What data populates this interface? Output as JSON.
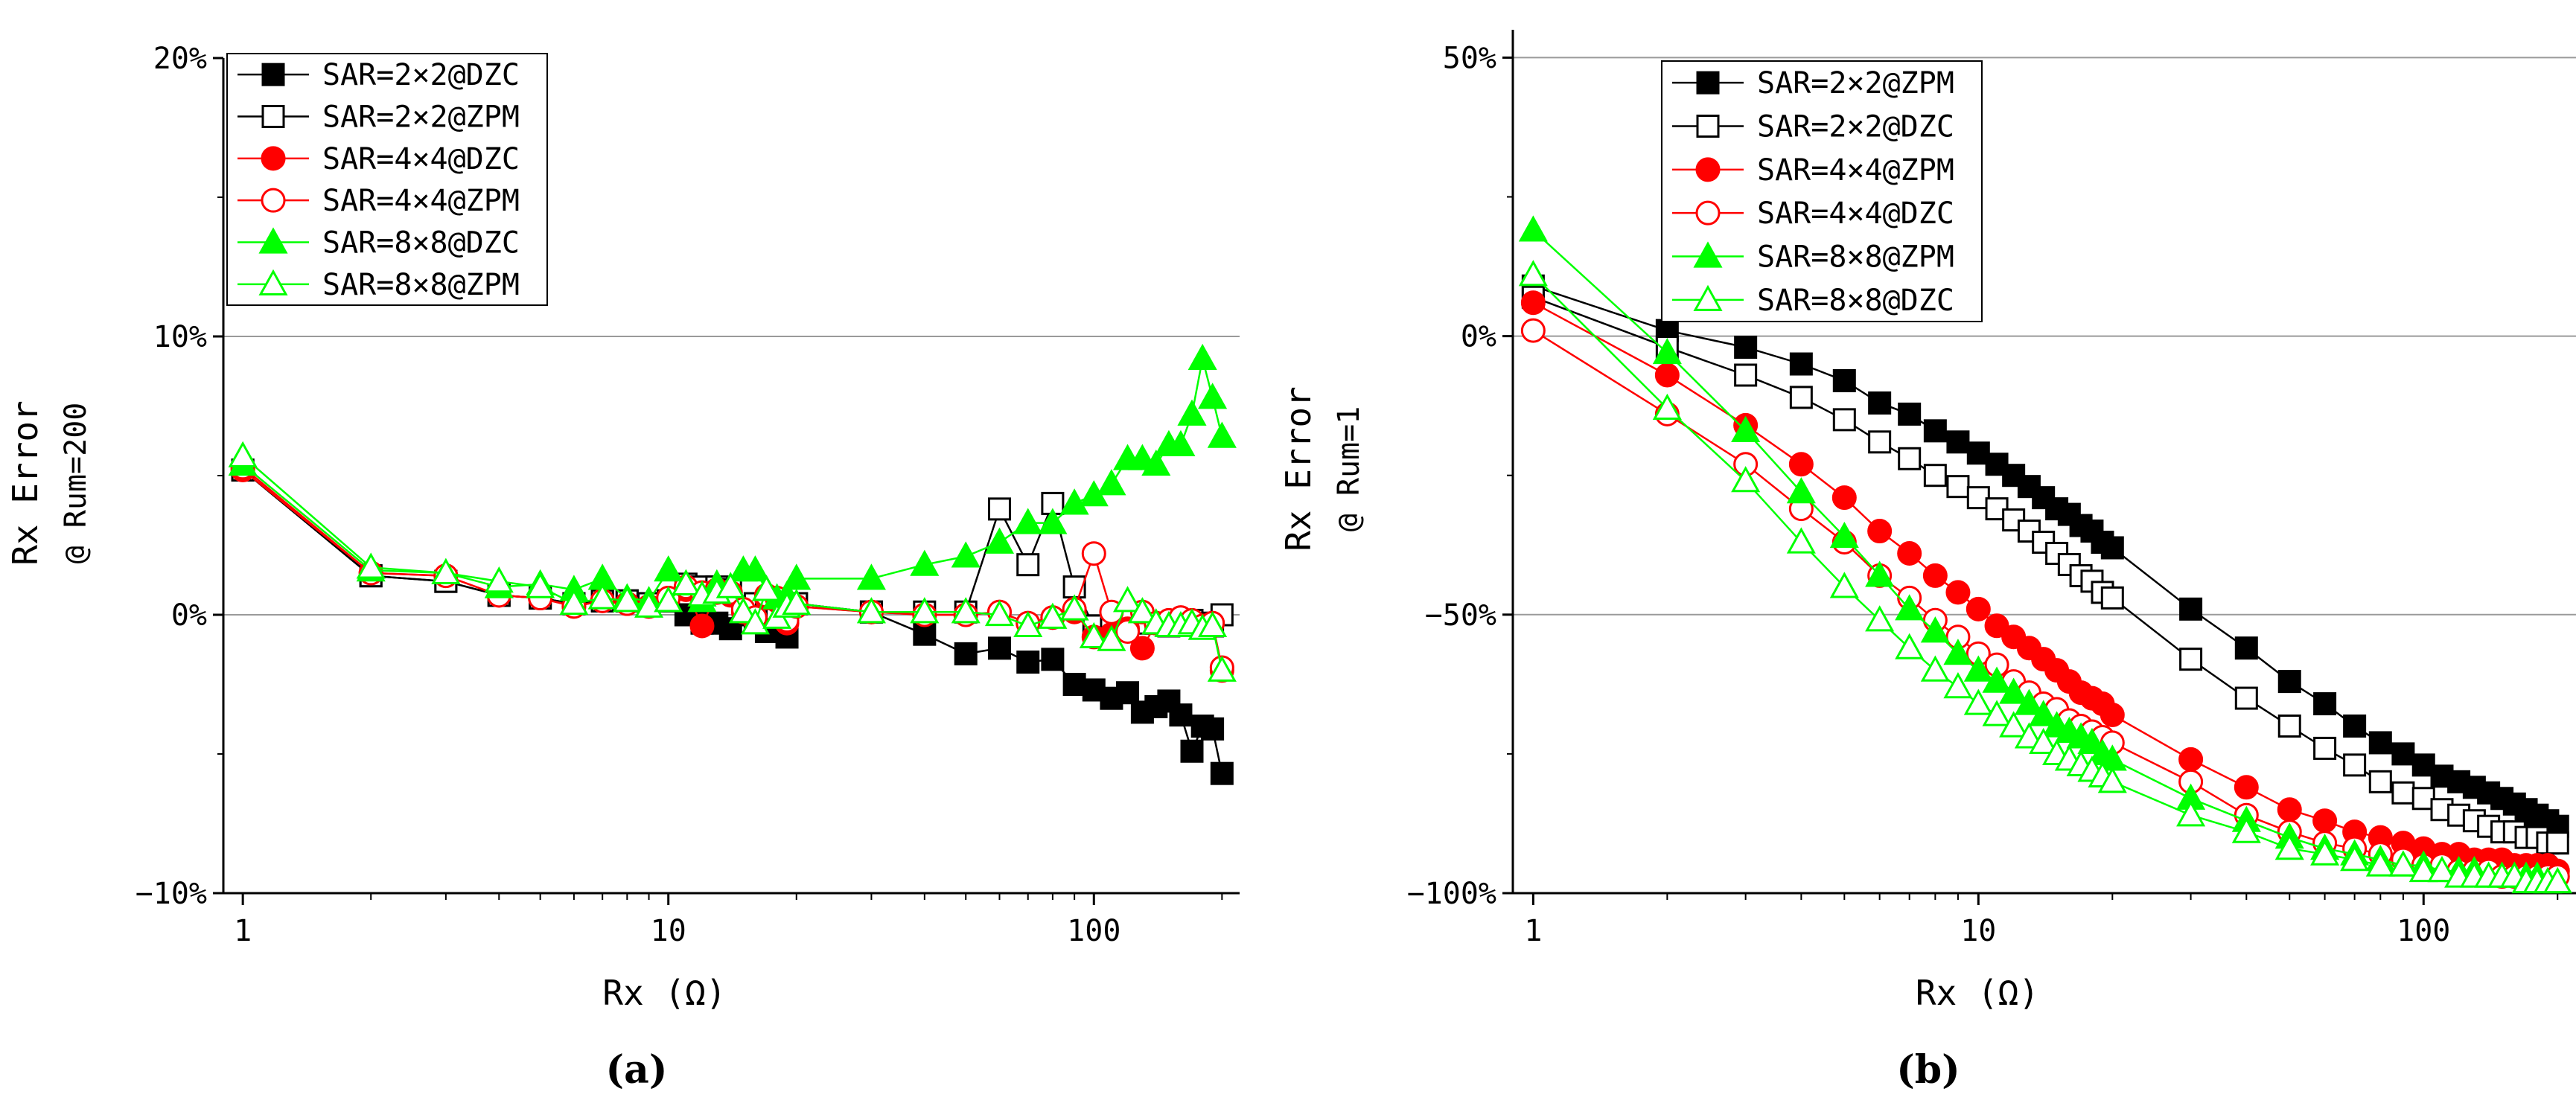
{
  "chart_data": [
    {
      "type": "line",
      "panel_label": "(a)",
      "panel_letter": "a",
      "xscale": "log",
      "xlim": [
        0.9,
        220
      ],
      "ylim": [
        -10,
        20
      ],
      "xticks": [
        1,
        10,
        100
      ],
      "xtick_labels": [
        "1",
        "10",
        "100"
      ],
      "yticks": [
        -10,
        0,
        10,
        20
      ],
      "ytick_labels": [
        "−10%",
        "0%",
        "10%",
        "20%"
      ],
      "grid_y": [
        10,
        0
      ],
      "xlabel": "Rx (Ω)",
      "ylabel_line1": "Rx Error",
      "ylabel_line2": "@ Rum=200",
      "legend_position": "top-left",
      "series": [
        {
          "name": "SAR=2×2@DZC",
          "label": "SAR=2×2@DZC",
          "color": "#000000",
          "marker": "square",
          "filled": true,
          "x": [
            1,
            2,
            3,
            4,
            5,
            6,
            7,
            8,
            9,
            10,
            11,
            12,
            13,
            14,
            15,
            16,
            17,
            18,
            19,
            20,
            30,
            40,
            50,
            60,
            70,
            80,
            90,
            100,
            110,
            120,
            130,
            140,
            150,
            160,
            170,
            180,
            190,
            200
          ],
          "y": [
            5.2,
            1.4,
            1.2,
            0.7,
            0.6,
            0.4,
            0.5,
            0.5,
            0.4,
            0.5,
            0.0,
            -0.3,
            -0.3,
            -0.5,
            0.0,
            -0.2,
            -0.6,
            -0.5,
            -0.8,
            0.4,
            0.1,
            -0.7,
            -1.4,
            -1.2,
            -1.7,
            -1.6,
            -2.5,
            -2.7,
            -3.0,
            -2.8,
            -3.5,
            -3.3,
            -3.1,
            -3.6,
            -4.9,
            -4.0,
            -4.1,
            -5.7
          ]
        },
        {
          "name": "SAR=2×2@ZPM",
          "label": "SAR=2×2@ZPM",
          "color": "#000000",
          "marker": "square",
          "filled": false,
          "x": [
            1,
            2,
            3,
            4,
            5,
            6,
            7,
            8,
            9,
            10,
            11,
            12,
            13,
            14,
            15,
            16,
            17,
            18,
            19,
            20,
            30,
            40,
            50,
            60,
            70,
            80,
            90,
            100,
            110,
            120,
            130,
            140,
            150,
            160,
            170,
            180,
            190,
            200
          ],
          "y": [
            5.2,
            1.4,
            1.2,
            0.7,
            0.6,
            0.4,
            0.5,
            0.5,
            0.4,
            0.5,
            1.1,
            1.0,
            1.0,
            0.9,
            0.2,
            0.4,
            0.1,
            0.2,
            0.1,
            0.4,
            0.1,
            0.1,
            0.1,
            3.8,
            1.8,
            4.0,
            1.0,
            -0.4,
            -0.5,
            -0.2,
            -0.3,
            -0.3,
            -0.4,
            -0.3,
            -0.2,
            -0.3,
            -0.4,
            0.0
          ]
        },
        {
          "name": "SAR=4×4@DZC",
          "label": "SAR=4×4@DZC",
          "color": "#ff0000",
          "marker": "circle",
          "filled": true,
          "x": [
            1,
            2,
            3,
            4,
            5,
            6,
            7,
            8,
            9,
            10,
            11,
            12,
            13,
            14,
            15,
            16,
            17,
            18,
            19,
            20,
            30,
            40,
            50,
            60,
            70,
            80,
            90,
            100,
            110,
            120,
            130,
            140,
            150,
            160,
            170,
            180,
            190,
            200
          ],
          "y": [
            5.2,
            1.5,
            1.4,
            0.7,
            0.6,
            0.3,
            0.5,
            0.4,
            0.3,
            0.6,
            0.9,
            -0.4,
            0.8,
            0.7,
            0.1,
            -0.2,
            0.6,
            0.5,
            -0.3,
            0.3,
            0.1,
            0.0,
            0.0,
            0.1,
            -0.3,
            -0.1,
            0.1,
            -0.8,
            -0.7,
            -0.5,
            -1.2,
            -0.3,
            -0.2,
            -0.1,
            -0.2,
            -0.4,
            -0.3,
            -2.0
          ]
        },
        {
          "name": "SAR=4×4@ZPM",
          "label": "SAR=4×4@ZPM",
          "color": "#ff0000",
          "marker": "circle",
          "filled": false,
          "x": [
            1,
            2,
            3,
            4,
            5,
            6,
            7,
            8,
            9,
            10,
            11,
            12,
            13,
            14,
            15,
            16,
            17,
            18,
            19,
            20,
            30,
            40,
            50,
            60,
            70,
            80,
            90,
            100,
            110,
            120,
            130,
            140,
            150,
            160,
            170,
            180,
            190,
            200
          ],
          "y": [
            5.3,
            1.5,
            1.4,
            0.7,
            0.6,
            0.3,
            0.5,
            0.4,
            0.3,
            0.6,
            1.0,
            0.8,
            0.9,
            0.8,
            0.2,
            -0.1,
            0.7,
            0.6,
            -0.2,
            0.3,
            0.1,
            0.0,
            0.0,
            0.1,
            -0.3,
            -0.1,
            0.2,
            2.2,
            0.1,
            -0.6,
            0.1,
            -0.3,
            -0.2,
            -0.1,
            -0.2,
            -0.4,
            -0.3,
            -1.9
          ]
        },
        {
          "name": "SAR=8×8@DZC",
          "label": "SAR=8×8@DZC",
          "color": "#00ff00",
          "marker": "triangle",
          "filled": true,
          "x": [
            1,
            2,
            3,
            4,
            5,
            6,
            7,
            8,
            9,
            10,
            11,
            12,
            13,
            14,
            15,
            16,
            17,
            18,
            19,
            20,
            30,
            40,
            50,
            60,
            70,
            80,
            90,
            100,
            110,
            120,
            130,
            140,
            150,
            160,
            170,
            180,
            190,
            200
          ],
          "y": [
            5.4,
            1.6,
            1.5,
            1.0,
            1.1,
            0.9,
            1.3,
            0.6,
            0.5,
            1.6,
            1.1,
            0.5,
            1.1,
            1.0,
            1.6,
            1.6,
            0.9,
            0.6,
            0.7,
            1.3,
            1.3,
            1.8,
            2.1,
            2.6,
            3.3,
            3.3,
            4.0,
            4.3,
            4.7,
            5.6,
            5.6,
            5.4,
            6.1,
            6.1,
            7.2,
            9.2,
            7.8,
            6.4
          ]
        },
        {
          "name": "SAR=8×8@ZPM",
          "label": "SAR=8×8@ZPM",
          "color": "#00ff00",
          "marker": "triangle",
          "filled": false,
          "x": [
            1,
            2,
            3,
            4,
            5,
            6,
            7,
            8,
            9,
            10,
            11,
            12,
            13,
            14,
            15,
            16,
            17,
            18,
            19,
            20,
            30,
            40,
            50,
            60,
            70,
            80,
            90,
            100,
            110,
            120,
            130,
            140,
            150,
            160,
            170,
            180,
            190,
            200
          ],
          "y": [
            5.7,
            1.7,
            1.5,
            1.2,
            1.0,
            0.4,
            0.6,
            0.5,
            0.3,
            0.5,
            1.1,
            0.7,
            0.8,
            1.0,
            0.1,
            -0.3,
            0.9,
            -0.1,
            0.3,
            0.4,
            0.1,
            0.1,
            0.1,
            0.0,
            -0.4,
            -0.1,
            0.2,
            -0.8,
            -0.9,
            0.5,
            0.1,
            -0.3,
            -0.4,
            -0.4,
            -0.3,
            -0.5,
            -0.4,
            -2.0
          ]
        }
      ]
    },
    {
      "type": "line",
      "panel_label": "(b)",
      "panel_letter": "b",
      "xscale": "log",
      "xlim": [
        0.9,
        220
      ],
      "ylim": [
        -100,
        55
      ],
      "xticks": [
        1,
        10,
        100
      ],
      "xtick_labels": [
        "1",
        "10",
        "100"
      ],
      "yticks": [
        -100,
        -50,
        0,
        50
      ],
      "ytick_labels": [
        "−100%",
        "−50%",
        "0%",
        "50%"
      ],
      "grid_y": [
        50,
        0,
        -50
      ],
      "xlabel": "Rx (Ω)",
      "ylabel_line1": "Rx Error",
      "ylabel_line2": "@ Rum=1",
      "legend_position": "top-center",
      "series": [
        {
          "name": "SAR=2×2@ZPM",
          "label": "SAR=2×2@ZPM",
          "color": "#000000",
          "marker": "square",
          "filled": true,
          "x": [
            1,
            2,
            3,
            4,
            5,
            6,
            7,
            8,
            9,
            10,
            11,
            12,
            13,
            14,
            15,
            16,
            17,
            18,
            19,
            20,
            30,
            40,
            50,
            60,
            70,
            80,
            90,
            100,
            110,
            120,
            130,
            140,
            150,
            160,
            170,
            180,
            190,
            200
          ],
          "y": [
            9,
            1,
            -2,
            -5,
            -8,
            -12,
            -14,
            -17,
            -19,
            -21,
            -23,
            -25,
            -27,
            -29,
            -31,
            -32,
            -34,
            -35,
            -37,
            -38,
            -49,
            -56,
            -62,
            -66,
            -70,
            -73,
            -75,
            -77,
            -79,
            -80,
            -81,
            -82,
            -83,
            -84,
            -85,
            -86,
            -87,
            -88
          ]
        },
        {
          "name": "SAR=2×2@DZC",
          "label": "SAR=2×2@DZC",
          "color": "#000000",
          "marker": "square",
          "filled": false,
          "x": [
            1,
            2,
            3,
            4,
            5,
            6,
            7,
            8,
            9,
            10,
            11,
            12,
            13,
            14,
            15,
            16,
            17,
            18,
            19,
            20,
            30,
            40,
            50,
            60,
            70,
            80,
            90,
            100,
            110,
            120,
            130,
            140,
            150,
            160,
            170,
            180,
            190,
            200
          ],
          "y": [
            7,
            -2,
            -7,
            -11,
            -15,
            -19,
            -22,
            -25,
            -27,
            -29,
            -31,
            -33,
            -35,
            -37,
            -39,
            -41,
            -43,
            -44,
            -46,
            -47,
            -58,
            -65,
            -70,
            -74,
            -77,
            -80,
            -82,
            -83,
            -85,
            -86,
            -87,
            -88,
            -89,
            -89,
            -90,
            -90,
            -91,
            -91
          ]
        },
        {
          "name": "SAR=4×4@ZPM",
          "label": "SAR=4×4@ZPM",
          "color": "#ff0000",
          "marker": "circle",
          "filled": true,
          "x": [
            1,
            2,
            3,
            4,
            5,
            6,
            7,
            8,
            9,
            10,
            11,
            12,
            13,
            14,
            15,
            16,
            17,
            18,
            19,
            20,
            30,
            40,
            50,
            60,
            70,
            80,
            90,
            100,
            110,
            120,
            130,
            140,
            150,
            160,
            170,
            180,
            190,
            200
          ],
          "y": [
            6,
            -7,
            -16,
            -23,
            -29,
            -35,
            -39,
            -43,
            -46,
            -49,
            -52,
            -54,
            -56,
            -58,
            -60,
            -62,
            -64,
            -65,
            -66,
            -68,
            -76,
            -81,
            -85,
            -87,
            -89,
            -90,
            -91,
            -92,
            -93,
            -93,
            -94,
            -94,
            -94,
            -95,
            -95,
            -95,
            -95,
            -96
          ]
        },
        {
          "name": "SAR=4×4@DZC",
          "label": "SAR=4×4@DZC",
          "color": "#ff0000",
          "marker": "circle",
          "filled": false,
          "x": [
            1,
            2,
            3,
            4,
            5,
            6,
            7,
            8,
            9,
            10,
            11,
            12,
            13,
            14,
            15,
            16,
            17,
            18,
            19,
            20,
            30,
            40,
            50,
            60,
            70,
            80,
            90,
            100,
            110,
            120,
            130,
            140,
            150,
            160,
            170,
            180,
            190,
            200
          ],
          "y": [
            1,
            -14,
            -23,
            -31,
            -37,
            -43,
            -47,
            -51,
            -54,
            -57,
            -59,
            -62,
            -64,
            -66,
            -67,
            -69,
            -70,
            -71,
            -72,
            -73,
            -80,
            -86,
            -89,
            -91,
            -92,
            -93,
            -94,
            -95,
            -95,
            -96,
            -96,
            -96,
            -97,
            -97,
            -97,
            -97,
            -97,
            -97
          ]
        },
        {
          "name": "SAR=8×8@ZPM",
          "label": "SAR=8×8@ZPM",
          "color": "#00ff00",
          "marker": "triangle",
          "filled": true,
          "x": [
            1,
            2,
            3,
            4,
            5,
            6,
            7,
            8,
            9,
            10,
            11,
            12,
            13,
            14,
            15,
            16,
            17,
            18,
            19,
            20,
            30,
            40,
            50,
            60,
            70,
            80,
            90,
            100,
            110,
            120,
            130,
            140,
            150,
            160,
            170,
            180,
            190,
            200
          ],
          "y": [
            19,
            -3,
            -17,
            -28,
            -36,
            -43,
            -49,
            -53,
            -57,
            -60,
            -62,
            -64,
            -66,
            -68,
            -70,
            -71,
            -72,
            -73,
            -75,
            -76,
            -83,
            -87,
            -90,
            -92,
            -93,
            -94,
            -95,
            -95,
            -96,
            -96,
            -96,
            -97,
            -97,
            -97,
            -97,
            -97,
            -98,
            -98
          ]
        },
        {
          "name": "SAR=8×8@DZC",
          "label": "SAR=8×8@DZC",
          "color": "#00ff00",
          "marker": "triangle",
          "filled": false,
          "x": [
            1,
            2,
            3,
            4,
            5,
            6,
            7,
            8,
            9,
            10,
            11,
            12,
            13,
            14,
            15,
            16,
            17,
            18,
            19,
            20,
            30,
            40,
            50,
            60,
            70,
            80,
            90,
            100,
            110,
            120,
            130,
            140,
            150,
            160,
            170,
            180,
            190,
            200
          ],
          "y": [
            11,
            -13,
            -26,
            -37,
            -45,
            -51,
            -56,
            -60,
            -63,
            -66,
            -68,
            -70,
            -72,
            -73,
            -75,
            -76,
            -77,
            -78,
            -79,
            -80,
            -86,
            -89,
            -92,
            -93,
            -94,
            -95,
            -95,
            -96,
            -96,
            -97,
            -97,
            -97,
            -97,
            -97,
            -98,
            -98,
            -98,
            -98
          ]
        }
      ]
    }
  ]
}
